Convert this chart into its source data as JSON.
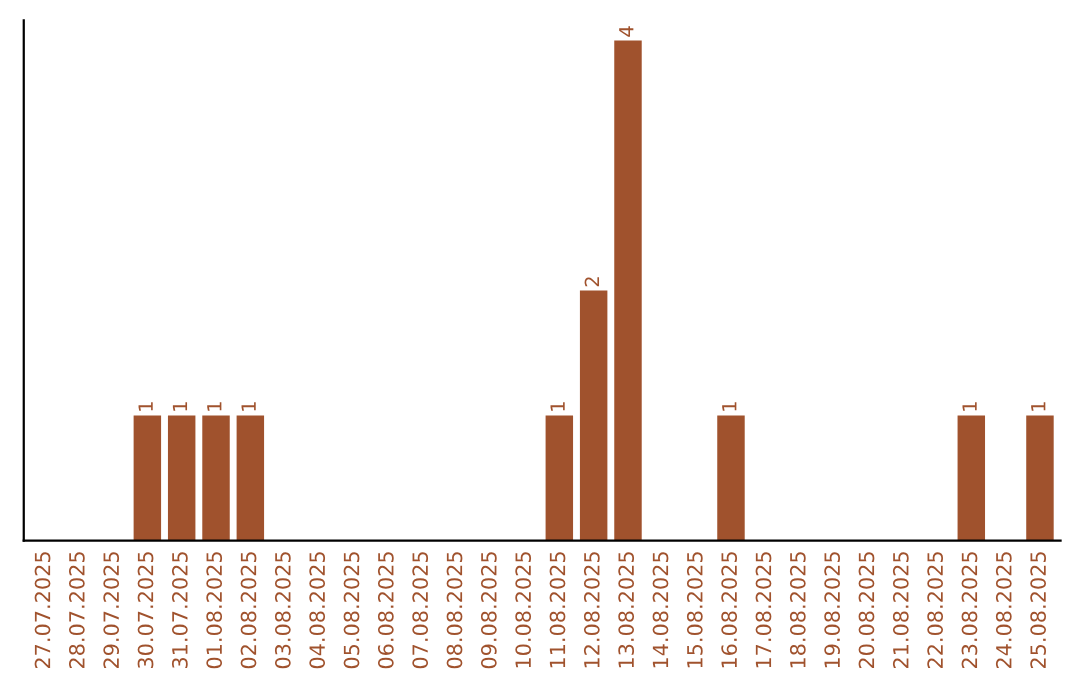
{
  "chart_data": {
    "type": "bar",
    "categories": [
      "27.07.2025",
      "28.07.2025",
      "29.07.2025",
      "30.07.2025",
      "31.07.2025",
      "01.08.2025",
      "02.08.2025",
      "03.08.2025",
      "04.08.2025",
      "05.08.2025",
      "06.08.2025",
      "07.08.2025",
      "08.08.2025",
      "09.08.2025",
      "10.08.2025",
      "11.08.2025",
      "12.08.2025",
      "13.08.2025",
      "14.08.2025",
      "15.08.2025",
      "16.08.2025",
      "17.08.2025",
      "18.08.2025",
      "19.08.2025",
      "20.08.2025",
      "21.08.2025",
      "22.08.2025",
      "23.08.2025",
      "24.08.2025",
      "25.08.2025"
    ],
    "values": [
      0,
      0,
      0,
      1,
      1,
      1,
      1,
      0,
      0,
      0,
      0,
      0,
      0,
      0,
      0,
      1,
      2,
      4,
      0,
      0,
      1,
      0,
      0,
      0,
      0,
      0,
      0,
      1,
      0,
      1
    ],
    "value_labels": [
      null,
      null,
      null,
      "1",
      "1",
      "1",
      "1",
      null,
      null,
      null,
      null,
      null,
      null,
      null,
      null,
      "1",
      "2",
      "4",
      null,
      null,
      "1",
      null,
      null,
      null,
      null,
      null,
      null,
      "1",
      null,
      "1"
    ],
    "color": "#a0522d",
    "tick_labels": "x",
    "grid": false
  }
}
